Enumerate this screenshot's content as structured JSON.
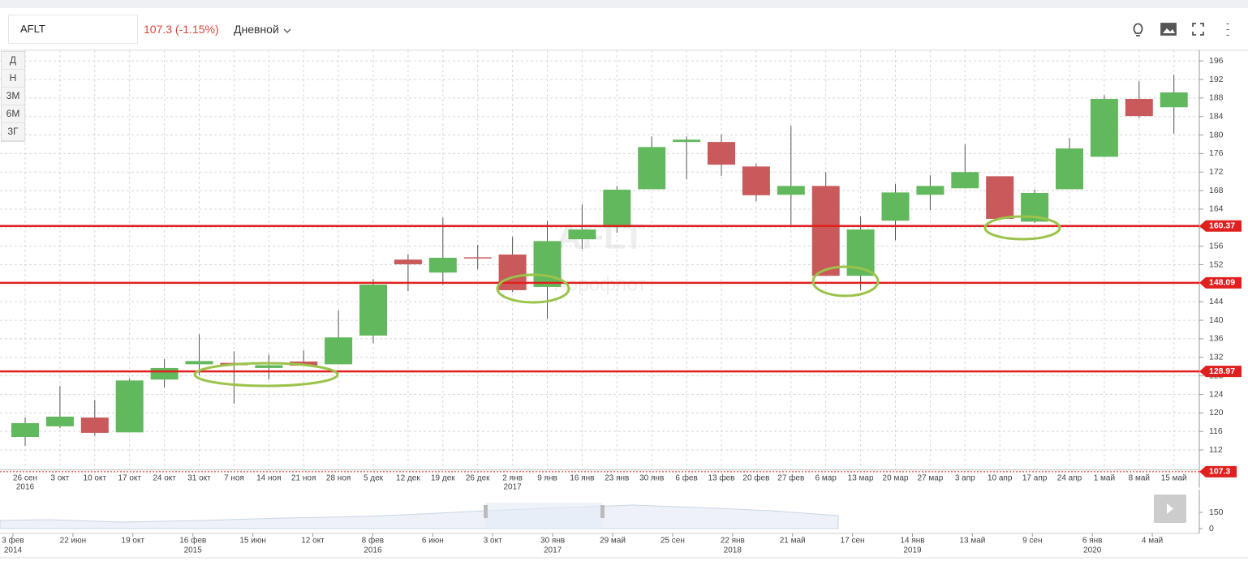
{
  "header": {
    "ticker": "AFLT",
    "quote": "107.3 (-1.15%)",
    "interval": "Дневной"
  },
  "sidebar_buttons": [
    "Д",
    "Н",
    "3М",
    "6М",
    "3Г"
  ],
  "watermark": {
    "symbol": "AFLT",
    "name": "Аэрофлот"
  },
  "chart_data": {
    "type": "candlestick",
    "categories": [
      "26 сен",
      "3 окт",
      "10 окт",
      "17 окт",
      "24 окт",
      "31 окт",
      "7 ноя",
      "14 ноя",
      "21 ноя",
      "28 ноя",
      "5 дек",
      "12 дек",
      "19 дек",
      "26 дек",
      "2 янв",
      "9 янв",
      "16 янв",
      "23 янв",
      "30 янв",
      "6 фев",
      "13 фев",
      "20 фев",
      "27 фев",
      "6 мар",
      "13 мар",
      "20 мар",
      "27 мар",
      "3 апр",
      "10 апр",
      "17 апр",
      "24 апр",
      "1 май",
      "8 май",
      "15 май"
    ],
    "category_years": [
      "2016",
      null,
      null,
      null,
      null,
      null,
      null,
      null,
      null,
      null,
      null,
      null,
      null,
      null,
      "2017",
      null,
      null,
      null,
      null,
      null,
      null,
      null,
      null,
      null,
      null,
      null,
      null,
      null,
      null,
      null,
      null,
      null,
      null,
      null
    ],
    "open": [
      114.8,
      117.1,
      119.0,
      115.8,
      127.2,
      130.5,
      130.8,
      129.7,
      131.1,
      130.5,
      136.7,
      153.1,
      150.3,
      153.6,
      154.2,
      147.2,
      157.5,
      160.1,
      168.3,
      178.5,
      178.5,
      173.2,
      167.1,
      169.0,
      149.6,
      161.5,
      167.1,
      168.5,
      171.1,
      161.3,
      168.3,
      175.3,
      187.8,
      186.0
    ],
    "high": [
      119.0,
      125.8,
      122.8,
      127.4,
      131.6,
      137.0,
      133.3,
      132.6,
      133.5,
      142.1,
      148.9,
      154.3,
      162.2,
      156.3,
      158.0,
      161.5,
      165.0,
      169.0,
      179.7,
      179.7,
      180.1,
      173.8,
      182.0,
      172.0,
      162.4,
      169.4,
      171.3,
      178.0,
      171.1,
      168.2,
      179.4,
      188.6,
      191.6,
      193.0
    ],
    "low": [
      112.9,
      116.7,
      115.1,
      115.8,
      125.5,
      128.1,
      122.0,
      127.2,
      130.2,
      130.5,
      135.1,
      146.3,
      147.7,
      151.0,
      146.1,
      140.3,
      155.4,
      158.9,
      168.3,
      170.4,
      171.2,
      165.7,
      160.6,
      149.6,
      146.5,
      157.3,
      163.8,
      168.5,
      161.9,
      161.0,
      168.3,
      175.3,
      183.7,
      180.3
    ],
    "close": [
      117.8,
      119.2,
      115.7,
      127.0,
      129.7,
      131.2,
      130.3,
      130.3,
      130.2,
      136.3,
      147.7,
      152.1,
      153.5,
      153.4,
      146.5,
      157.1,
      159.6,
      168.2,
      177.4,
      179.0,
      173.6,
      167.0,
      169.0,
      149.6,
      159.6,
      167.6,
      169.0,
      172.0,
      161.9,
      167.5,
      177.1,
      187.8,
      184.1,
      189.2
    ],
    "up_color": "#62b85c",
    "down_color": "#c9595a",
    "ylim": [
      107,
      198.3
    ],
    "yticks": [
      112,
      116,
      120,
      124,
      128,
      132,
      136,
      140,
      144,
      148,
      152,
      156,
      160,
      164,
      168,
      172,
      176,
      180,
      184,
      188,
      192,
      196
    ],
    "grid": true,
    "price_lines": [
      {
        "value": 160.37,
        "color": "#e0201f"
      },
      {
        "value": 148.09,
        "color": "#e0201f"
      },
      {
        "value": 128.97,
        "color": "#e0201f"
      }
    ],
    "last_price": 107.3
  },
  "navigator": {
    "ylim": [
      0,
      330
    ],
    "yticks": [
      150,
      0
    ],
    "dates": [
      "3 фев",
      "22 июн",
      "19 окт",
      "16 фев",
      "15 июн",
      "12 окт",
      "8 фев",
      "6 июн",
      "3 окт",
      "30 янв",
      "29 май",
      "25 сен",
      "22 янв",
      "21 май",
      "17 сен",
      "14 янв",
      "13 май",
      "9 сен",
      "6 янв",
      "4 май"
    ],
    "years": [
      "2014",
      null,
      null,
      "2015",
      null,
      null,
      "2016",
      null,
      null,
      "2017",
      null,
      null,
      "2018",
      null,
      null,
      "2019",
      null,
      null,
      "2020",
      null
    ]
  }
}
